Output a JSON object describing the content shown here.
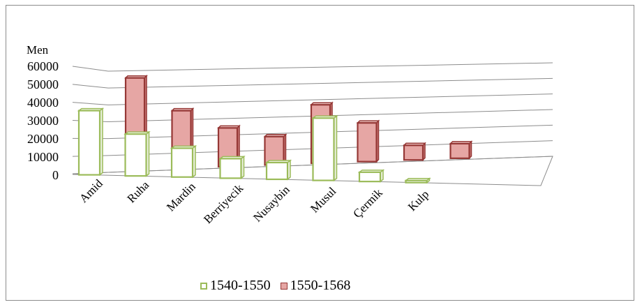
{
  "chart_data": {
    "type": "bar",
    "subtype": "3d-clustered-column",
    "title": "",
    "ylabel": "Men",
    "xlabel": "",
    "ylim": [
      0,
      60000
    ],
    "yticks": [
      "0",
      "10000",
      "20000",
      "30000",
      "40000",
      "50000",
      "60000"
    ],
    "categories": [
      "Amid",
      "Ruha",
      "Mardin",
      "Berriyecik",
      "Nusaybin",
      "Musul",
      "Çermik",
      "Kulp"
    ],
    "series": [
      {
        "name": "1540-1550",
        "values": [
          34500,
          22500,
          15500,
          10500,
          9000,
          33500,
          5000,
          700
        ],
        "fill": "#ffffff",
        "edge": "#9bbb59"
      },
      {
        "name": "1550-1568",
        "values": [
          53500,
          33500,
          22500,
          16500,
          34000,
          22500,
          8500,
          8500
        ],
        "fill": "#e6a6a4",
        "edge": "#953735"
      }
    ],
    "grid": true,
    "legend_position": "bottom"
  }
}
